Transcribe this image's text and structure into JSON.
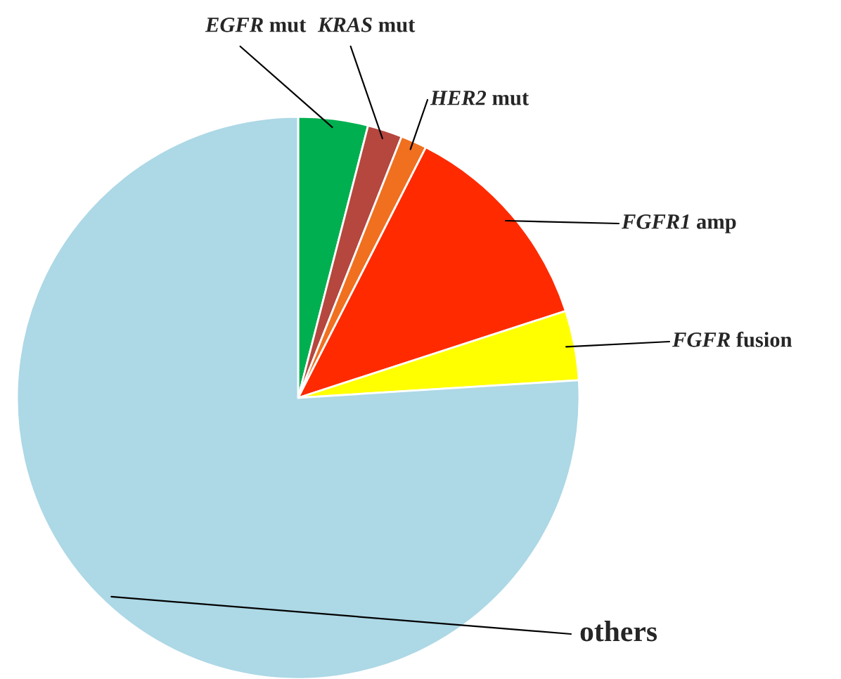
{
  "chart_data": {
    "type": "pie",
    "categories": [
      "EGFR mut",
      "KRAS mut",
      "HER2 mut",
      "FGFR1 amp",
      "FGFR fusion",
      "others"
    ],
    "values": [
      4,
      2,
      1.5,
      12.5,
      4,
      76
    ],
    "colors": [
      "#00b050",
      "#b5473f",
      "#f07020",
      "#ff2a00",
      "#ffff00",
      "#add8e6"
    ]
  }
}
